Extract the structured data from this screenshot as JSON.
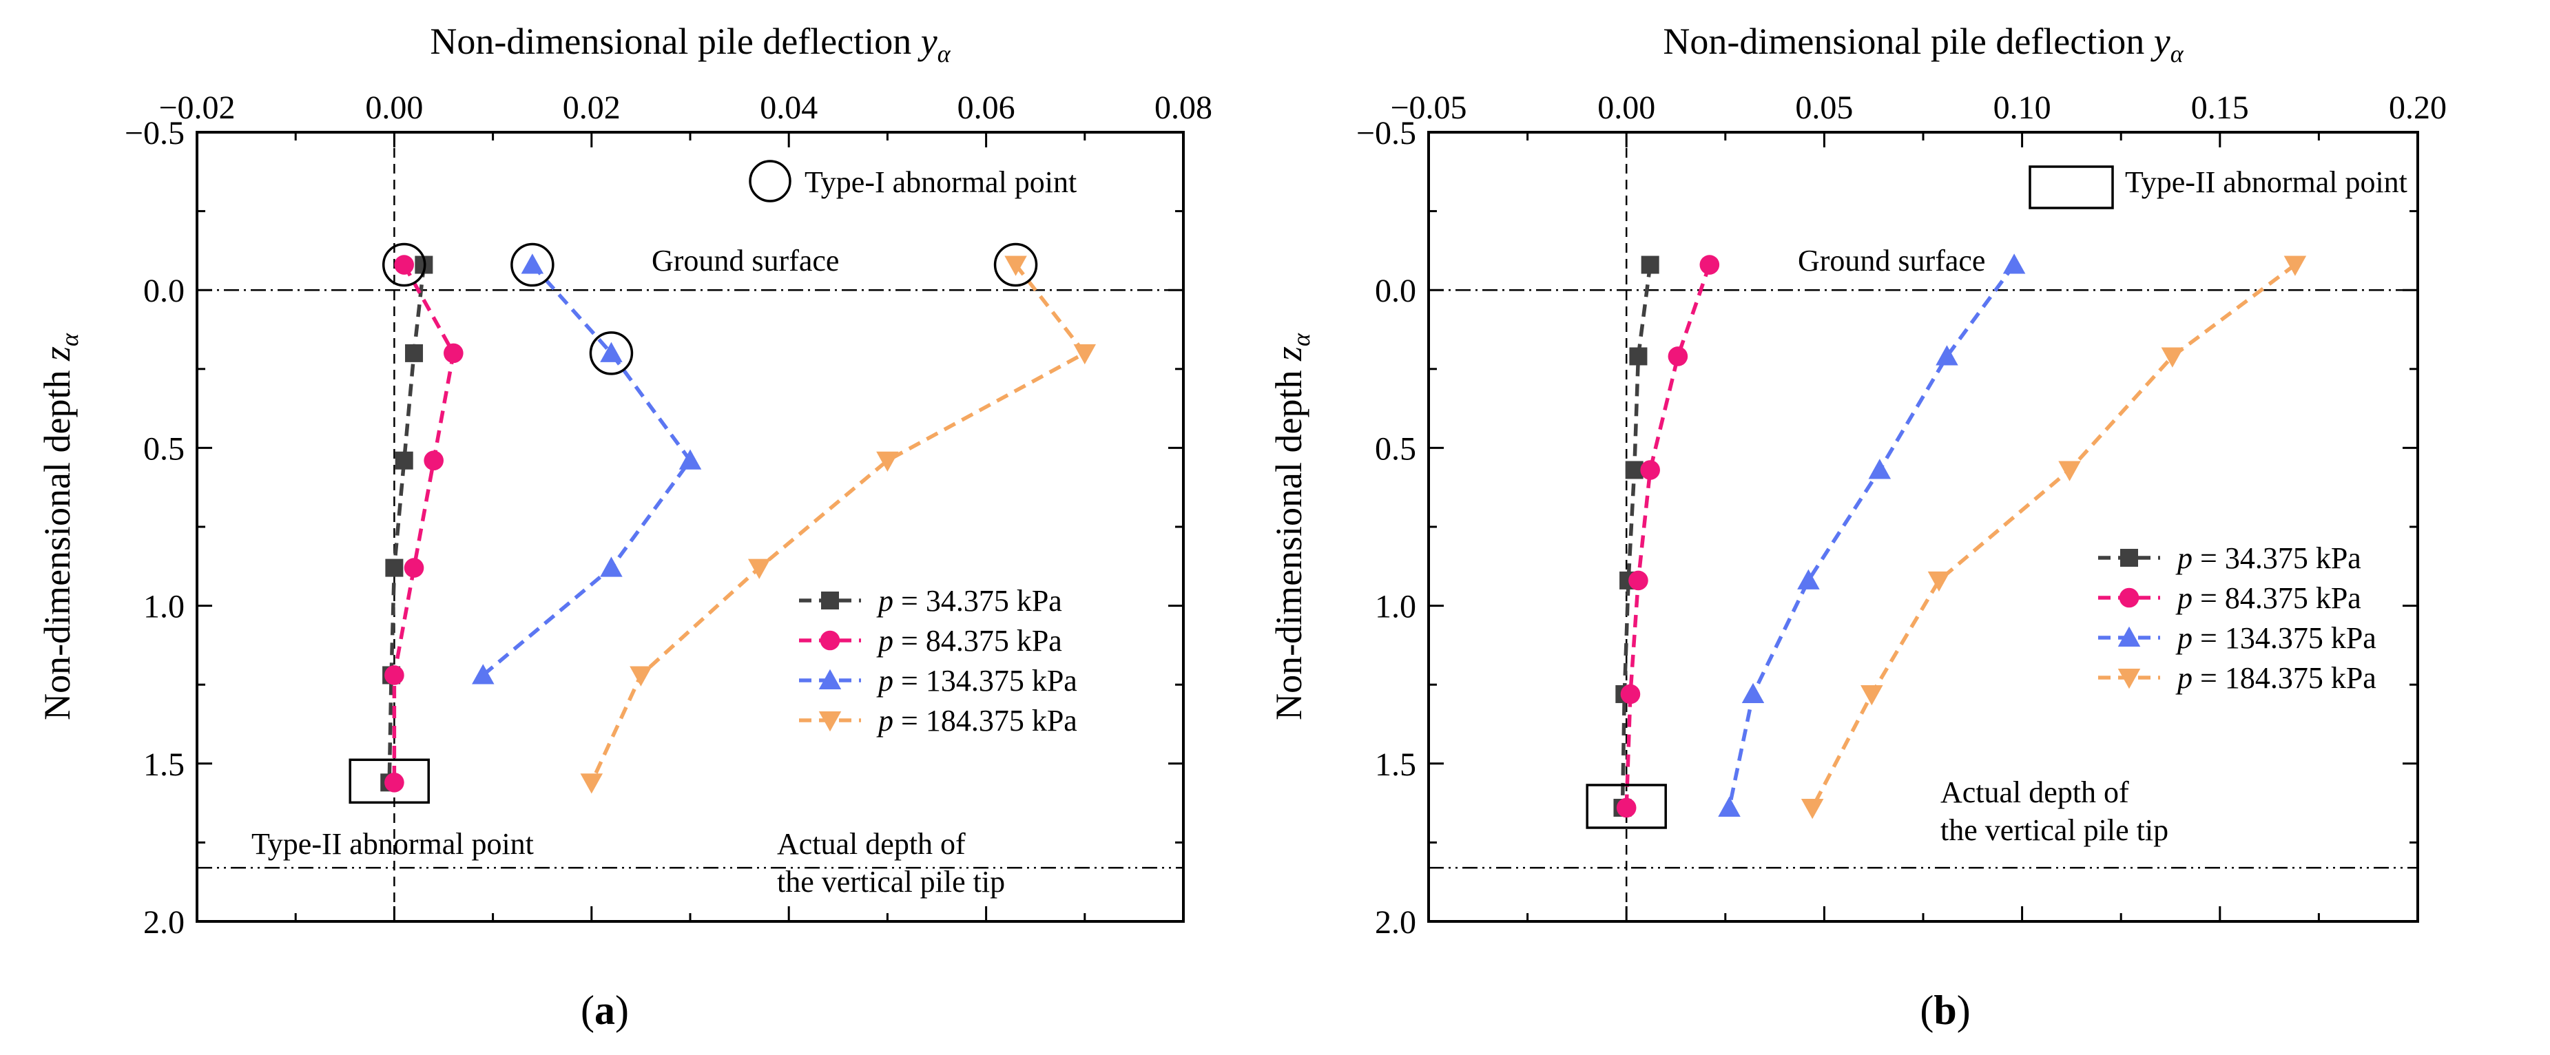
{
  "figure_colors": {
    "s1": "#404040",
    "s2": "#f0157a",
    "s3": "#5b76f2",
    "s4": "#f5a760",
    "ink": "#000000"
  },
  "chart_data": [
    {
      "type": "line",
      "panel_label": "a",
      "xlabel": "Non-dimensional pile deflection",
      "xlabel_symbol": "y",
      "xlabel_sub": "α",
      "ylabel": "Non-dimensional depth",
      "ylabel_symbol": "z",
      "ylabel_sub": "α",
      "xlim": [
        -0.02,
        0.08
      ],
      "ylim": [
        -0.5,
        2.0
      ],
      "xticks": [
        -0.02,
        0.0,
        0.02,
        0.04,
        0.06,
        0.08
      ],
      "xtick_labels": [
        "−0.02",
        "0.00",
        "0.02",
        "0.04",
        "0.06",
        "0.08"
      ],
      "yticks": [
        -0.5,
        0.0,
        0.5,
        1.0,
        1.5,
        2.0
      ],
      "ytick_labels": [
        "−0.5",
        "0.0",
        "0.5",
        "1.0",
        "1.5",
        "2.0"
      ],
      "ground_surface_depth": 0.0,
      "pile_tip_depth": 1.83,
      "ground_label": "Ground surface",
      "pile_tip_label": [
        "Actual depth of",
        "the vertical pile tip"
      ],
      "legend_title_text": "Type-I abnormal point",
      "second_note_text": "Type-II abnormal point",
      "legend_p": "p",
      "legend_placement": "lower-right",
      "series": [
        {
          "name": "34.375 kPa",
          "marker": "square",
          "color": "#404040",
          "x": [
            0.003,
            0.002,
            0.001,
            0.0,
            -0.0003,
            -0.0005
          ],
          "y": [
            -0.08,
            0.2,
            0.54,
            0.88,
            1.22,
            1.56
          ]
        },
        {
          "name": "84.375 kPa",
          "marker": "circle",
          "color": "#f0157a",
          "x": [
            0.001,
            0.006,
            0.004,
            0.002,
            0.0,
            0.0
          ],
          "y": [
            -0.08,
            0.2,
            0.54,
            0.88,
            1.22,
            1.56
          ]
        },
        {
          "name": "134.375 kPa",
          "marker": "triangle-up",
          "color": "#5b76f2",
          "x": [
            0.014,
            0.022,
            0.03,
            0.022,
            0.009
          ],
          "y": [
            -0.08,
            0.2,
            0.54,
            0.88,
            1.22
          ]
        },
        {
          "name": "184.375 kPa",
          "marker": "triangle-down",
          "color": "#f5a760",
          "x": [
            0.063,
            0.07,
            0.05,
            0.037,
            0.025,
            0.02
          ],
          "y": [
            -0.08,
            0.2,
            0.54,
            0.88,
            1.22,
            1.56
          ]
        }
      ],
      "type1_points": [
        [
          0.001,
          -0.08
        ],
        [
          0.014,
          -0.08
        ],
        [
          0.022,
          0.2
        ],
        [
          0.063,
          -0.08
        ]
      ],
      "type2_points": [
        [
          -0.0005,
          1.56
        ]
      ]
    },
    {
      "type": "line",
      "panel_label": "b",
      "xlabel": "Non-dimensional pile deflection",
      "xlabel_symbol": "y",
      "xlabel_sub": "α",
      "ylabel": "Non-dimensional depth",
      "ylabel_symbol": "z",
      "ylabel_sub": "α",
      "xlim": [
        -0.05,
        0.2
      ],
      "ylim": [
        -0.5,
        2.0
      ],
      "xticks": [
        -0.05,
        0.0,
        0.05,
        0.1,
        0.15,
        0.2
      ],
      "xtick_labels": [
        "−0.05",
        "0.00",
        "0.05",
        "0.10",
        "0.15",
        "0.20"
      ],
      "yticks": [
        -0.5,
        0.0,
        0.5,
        1.0,
        1.5,
        2.0
      ],
      "ytick_labels": [
        "−0.5",
        "0.0",
        "0.5",
        "1.0",
        "1.5",
        "2.0"
      ],
      "ground_surface_depth": 0.0,
      "pile_tip_depth": 1.83,
      "ground_label": "Ground surface",
      "pile_tip_label": [
        "Actual depth of",
        "the vertical pile tip"
      ],
      "legend_title_text": "Type-II abnormal point",
      "legend_p": "p",
      "legend_placement": "right",
      "series": [
        {
          "name": "34.375 kPa",
          "marker": "square",
          "color": "#404040",
          "x": [
            0.006,
            0.003,
            0.002,
            0.0005,
            -0.0005,
            -0.001
          ],
          "y": [
            -0.08,
            0.21,
            0.57,
            0.92,
            1.28,
            1.64
          ]
        },
        {
          "name": "84.375 kPa",
          "marker": "circle",
          "color": "#f0157a",
          "x": [
            0.021,
            0.013,
            0.006,
            0.003,
            0.001,
            0.0
          ],
          "y": [
            -0.08,
            0.21,
            0.57,
            0.92,
            1.28,
            1.64
          ]
        },
        {
          "name": "134.375 kPa",
          "marker": "triangle-up",
          "color": "#5b76f2",
          "x": [
            0.098,
            0.081,
            0.064,
            0.046,
            0.032,
            0.026
          ],
          "y": [
            -0.08,
            0.21,
            0.57,
            0.92,
            1.28,
            1.64
          ]
        },
        {
          "name": "184.375 kPa",
          "marker": "triangle-down",
          "color": "#f5a760",
          "x": [
            0.169,
            0.138,
            0.112,
            0.079,
            0.062,
            0.047
          ],
          "y": [
            -0.08,
            0.21,
            0.57,
            0.92,
            1.28,
            1.64
          ]
        }
      ],
      "type2_points": [
        [
          0.0,
          1.64
        ]
      ]
    }
  ]
}
